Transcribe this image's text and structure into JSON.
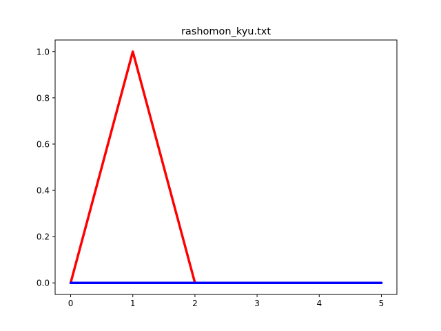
{
  "chart_data": {
    "type": "line",
    "title": "rashomon_kyu.txt",
    "xlabel": "",
    "ylabel": "",
    "xlim": [
      -0.25,
      5.25
    ],
    "ylim": [
      -0.05,
      1.05
    ],
    "xticks": [
      0,
      1,
      2,
      3,
      4,
      5
    ],
    "xtick_labels": [
      "0",
      "1",
      "2",
      "3",
      "4",
      "5"
    ],
    "yticks": [
      0.0,
      0.2,
      0.4,
      0.6,
      0.8,
      1.0
    ],
    "ytick_labels": [
      "0.0",
      "0.2",
      "0.4",
      "0.6",
      "0.8",
      "1.0"
    ],
    "grid": false,
    "legend": "none",
    "series": [
      {
        "color": "#ff0000",
        "x": [
          0,
          1,
          2,
          3,
          4,
          5
        ],
        "y": [
          0,
          1,
          0,
          0,
          0,
          0
        ]
      },
      {
        "color": "#0000ff",
        "x": [
          0,
          1,
          2,
          3,
          4,
          5
        ],
        "y": [
          0,
          0,
          0,
          0,
          0,
          0
        ]
      }
    ]
  }
}
